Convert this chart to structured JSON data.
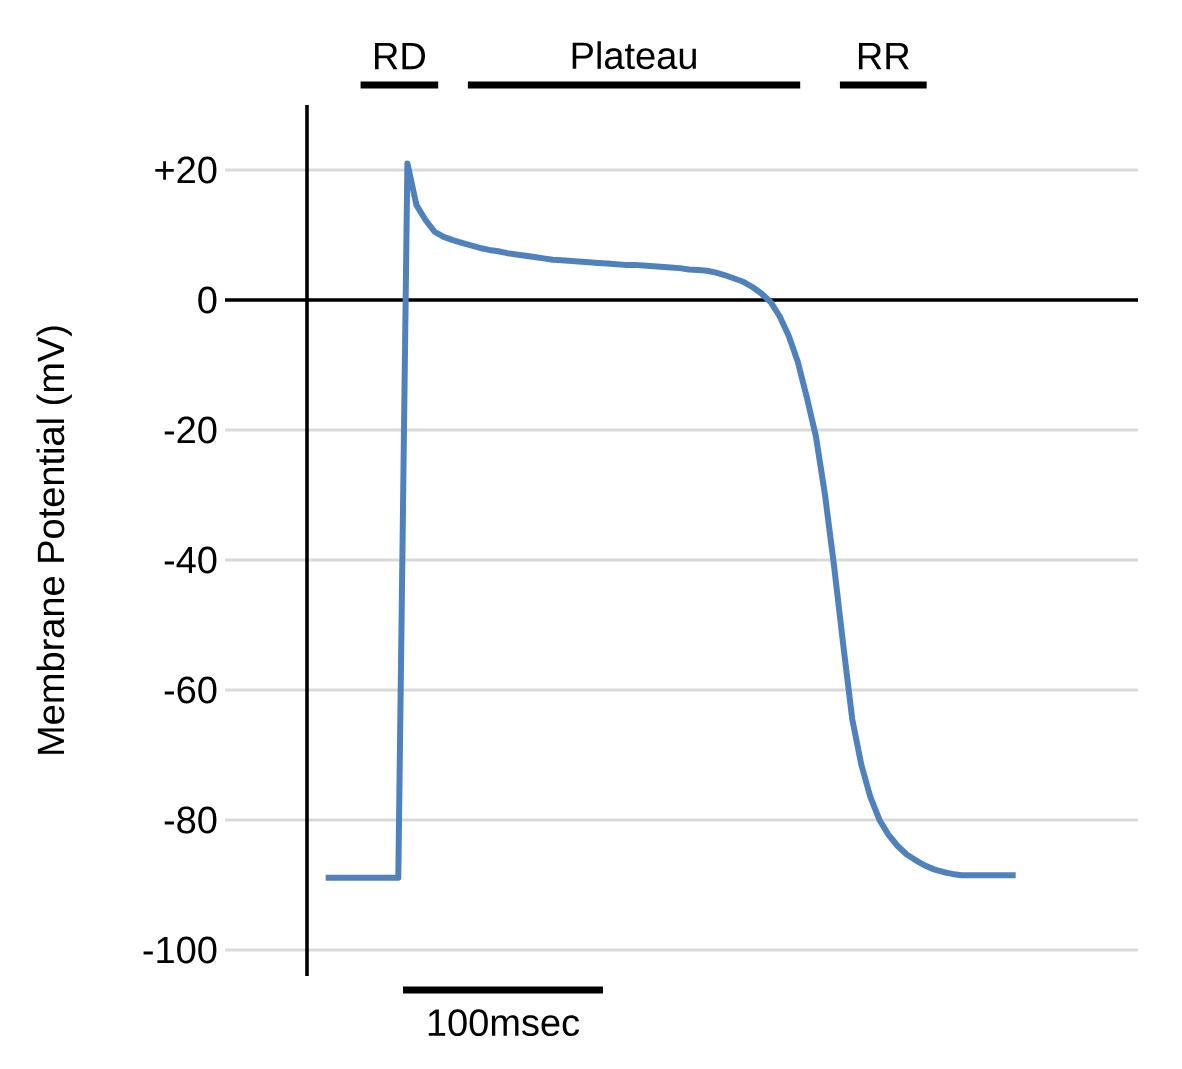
{
  "chart_data": {
    "type": "line",
    "ylabel": "Membrane Potential (mV)",
    "xlabel": "100msec",
    "annotations": [
      "RD",
      "Plateau",
      "RR"
    ],
    "categories": [
      null,
      null,
      null,
      null,
      null,
      null,
      null,
      null,
      null,
      null,
      null,
      null,
      null,
      null,
      null,
      null,
      null,
      null,
      null,
      null,
      null,
      null,
      null,
      null,
      null,
      null,
      null,
      null,
      null,
      null,
      null,
      null,
      null,
      null,
      null,
      null,
      null,
      null,
      null,
      null,
      null,
      null,
      null,
      null,
      null,
      null,
      null,
      null,
      null,
      null,
      null,
      null,
      null,
      null,
      null,
      null,
      null,
      null,
      null,
      null,
      null,
      null,
      null,
      null,
      null,
      null,
      null,
      null,
      null,
      null,
      null,
      null,
      null,
      null,
      null,
      null,
      null
    ],
    "series": [
      {
        "color": "#4f81bd",
        "values": [
          -88.9,
          -88.9,
          -88.9,
          -88.9,
          -88.9,
          -88.9,
          -88.9,
          -88.9,
          -88.9,
          21,
          14.6,
          12.3,
          10.5,
          9.7,
          9.2,
          8.8,
          8.4,
          8.0,
          7.7,
          7.5,
          7.2,
          7.0,
          6.8,
          6.6,
          6.4,
          6.2,
          6.1,
          6.0,
          5.9,
          5.8,
          5.7,
          5.6,
          5.5,
          5.4,
          5.4,
          5.3,
          5.2,
          5.1,
          5.0,
          4.9,
          4.7,
          4.6,
          4.5,
          4.2,
          3.8,
          3.3,
          2.8,
          2.0,
          1.0,
          -0.3,
          -2.5,
          -5.5,
          -9.5,
          -15,
          -21,
          -30,
          -41,
          -53,
          -64.5,
          -71.5,
          -76.5,
          -80,
          -82.3,
          -84,
          -85.3,
          -86.2,
          -87,
          -87.6,
          -88,
          -88.3,
          -88.5,
          -88.5,
          -88.5,
          -88.5,
          -88.5,
          -88.5,
          -88.5
        ]
      }
    ],
    "ylim": [
      -104,
      30
    ],
    "yticks": [
      {
        "value": 20,
        "label": "+20"
      },
      {
        "value": 0,
        "label": "0"
      },
      {
        "value": -20,
        "label": "-20"
      },
      {
        "value": -40,
        "label": "-40"
      },
      {
        "value": -60,
        "label": "-60"
      },
      {
        "value": -80,
        "label": "-80"
      },
      {
        "value": -100,
        "label": "-100"
      }
    ],
    "tick_labels": "y",
    "grid": "y",
    "marker": "none",
    "line_style": "solid",
    "ref_lines": [
      {
        "axis": "y",
        "value": 0,
        "color": "#000000"
      }
    ]
  }
}
